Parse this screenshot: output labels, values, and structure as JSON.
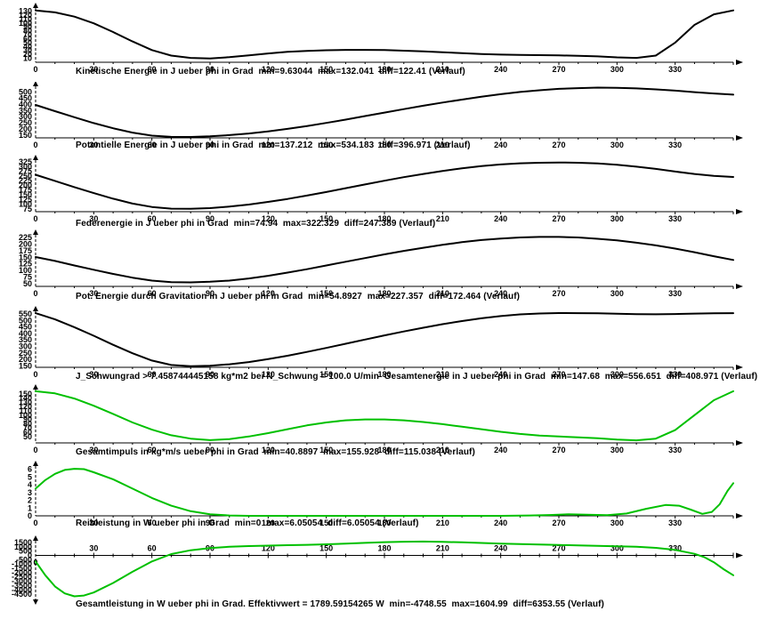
{
  "app": {
    "background": "#ffffff",
    "axis_color": "#000000",
    "text_color": "#000000",
    "curve_black": "#000000",
    "curve_green": "#00c000"
  },
  "chart_data": [
    {
      "type": "line",
      "name": "kinetische-energie",
      "title": "Kinetische Energie in J ueber phi in Grad  min=9.63044  max=132.041  diff=122.41 (Verlauf)",
      "xlabel": "phi in Grad",
      "ylabel": "Kinetische Energie in J",
      "min": 9.63044,
      "max": 132.041,
      "diff": 122.41,
      "color": "#000000",
      "xlim": [
        0,
        360
      ],
      "xticks": [
        0,
        30,
        60,
        90,
        120,
        150,
        180,
        210,
        240,
        270,
        300,
        330
      ],
      "xtick_minor_step": 10,
      "ylim": [
        0,
        138
      ],
      "yticks": [
        130,
        120,
        110,
        100,
        90,
        80,
        70,
        60,
        50,
        40,
        30,
        20,
        10
      ],
      "x": [
        0,
        10,
        20,
        30,
        40,
        50,
        60,
        70,
        80,
        90,
        100,
        110,
        120,
        130,
        140,
        150,
        160,
        170,
        180,
        190,
        200,
        210,
        220,
        230,
        240,
        250,
        260,
        270,
        280,
        290,
        300,
        310,
        320,
        330,
        340,
        350,
        360
      ],
      "y": [
        132,
        127,
        116,
        99,
        77,
        53,
        31,
        17,
        11,
        9.7,
        13,
        17.5,
        22.5,
        26.5,
        29,
        30.5,
        31.5,
        31.5,
        31,
        29.5,
        27.5,
        25.5,
        23,
        21,
        19.5,
        18.5,
        18,
        17.5,
        16.5,
        15,
        12.5,
        11,
        17,
        50,
        95,
        122,
        132
      ]
    },
    {
      "type": "line",
      "name": "potentielle-energie",
      "title": "Potentielle Energie in J ueber phi in Grad  min=137.212  max=534.183  diff=396.971 (Verlauf)",
      "xlabel": "phi in Grad",
      "ylabel": "Potentielle Energie in J",
      "min": 137.212,
      "max": 534.183,
      "diff": 396.971,
      "color": "#000000",
      "xlim": [
        0,
        360
      ],
      "xticks": [
        0,
        30,
        60,
        90,
        120,
        150,
        180,
        210,
        240,
        270,
        300,
        330
      ],
      "xtick_minor_step": 10,
      "ylim": [
        130,
        545
      ],
      "yticks": [
        500,
        450,
        400,
        350,
        300,
        250,
        200,
        150
      ],
      "x": [
        0,
        10,
        20,
        30,
        40,
        50,
        60,
        70,
        80,
        90,
        100,
        110,
        120,
        130,
        140,
        150,
        160,
        170,
        180,
        190,
        200,
        210,
        220,
        230,
        240,
        250,
        260,
        270,
        280,
        290,
        300,
        310,
        320,
        330,
        340,
        350,
        360
      ],
      "y": [
        395,
        345,
        296,
        249,
        207,
        172,
        148,
        138,
        137.5,
        142,
        152,
        165,
        182,
        202,
        225,
        250,
        277,
        305,
        333,
        361,
        388,
        414,
        438,
        461,
        481,
        499,
        513,
        524,
        530,
        534,
        533,
        528,
        520,
        510,
        498,
        487,
        478
      ]
    },
    {
      "type": "line",
      "name": "federenergie",
      "title": "Federenergie in J ueber phi in Grad  min=74.94  max=322.329  diff=247.389 (Verlauf)",
      "xlabel": "phi in Grad",
      "ylabel": "Federenergie in J",
      "min": 74.94,
      "max": 322.329,
      "diff": 247.389,
      "color": "#000000",
      "xlim": [
        0,
        360
      ],
      "xticks": [
        0,
        30,
        60,
        90,
        120,
        150,
        180,
        210,
        240,
        270,
        300,
        330
      ],
      "xtick_minor_step": 10,
      "ylim": [
        60,
        335
      ],
      "yticks": [
        325,
        300,
        275,
        250,
        225,
        200,
        175,
        150,
        125,
        100,
        75
      ],
      "x": [
        0,
        10,
        20,
        30,
        40,
        50,
        60,
        70,
        80,
        90,
        100,
        110,
        120,
        130,
        140,
        150,
        160,
        170,
        180,
        190,
        200,
        210,
        220,
        230,
        240,
        250,
        260,
        270,
        280,
        290,
        300,
        310,
        320,
        330,
        340,
        350,
        360
      ],
      "y": [
        257,
        224,
        191,
        159,
        129,
        103,
        85,
        76,
        75,
        79,
        87,
        98,
        112,
        128,
        146,
        165,
        185,
        205,
        225,
        244,
        261,
        277,
        291,
        303,
        312,
        318,
        321,
        322,
        321,
        317,
        310,
        300,
        288,
        274,
        261,
        251,
        245
      ]
    },
    {
      "type": "line",
      "name": "pot-energie-gravitation",
      "title": "Pot. Energie durch Gravitation in J ueber phi in Grad  min=54.8927  max=227.357  diff=172.464 (Verlauf)",
      "xlabel": "phi in Grad",
      "ylabel": "Pot. Energie durch Gravitation in J",
      "min": 54.8927,
      "max": 227.357,
      "diff": 172.464,
      "color": "#000000",
      "xlim": [
        0,
        360
      ],
      "xticks": [
        0,
        30,
        60,
        90,
        120,
        150,
        180,
        210,
        240,
        270,
        300,
        330
      ],
      "xtick_minor_step": 10,
      "ylim": [
        40,
        235
      ],
      "yticks": [
        225,
        200,
        175,
        150,
        125,
        100,
        75,
        50
      ],
      "x": [
        0,
        10,
        20,
        30,
        40,
        50,
        60,
        70,
        80,
        90,
        100,
        110,
        120,
        130,
        140,
        150,
        160,
        170,
        180,
        190,
        200,
        210,
        220,
        230,
        240,
        250,
        260,
        270,
        280,
        290,
        300,
        310,
        320,
        330,
        340,
        350,
        360
      ],
      "y": [
        151,
        136,
        119,
        103,
        87,
        73,
        62,
        56,
        55,
        57.5,
        62,
        70,
        80,
        92,
        105,
        119,
        133,
        147,
        161,
        174,
        186,
        197,
        207,
        215,
        221,
        225,
        227,
        227,
        225,
        220,
        214,
        205,
        195,
        183,
        169,
        154,
        140
      ]
    },
    {
      "type": "line",
      "name": "gesamtenergie",
      "title": "J_Schwungrad > 7.458744445158 kg*m2 bei N_Schwung = 100.0 U/min  Gesamtenergie in J ueber phi in Grad  min=147.68  max=556.651  diff=408.971 (Verlauf)",
      "xlabel": "phi in Grad",
      "ylabel": "Gesamtenergie in J",
      "min": 147.68,
      "max": 556.651,
      "diff": 408.971,
      "j_schwungrad": 7.458744445158,
      "j_schwungrad_unit": "kg*m2",
      "n_schwung": 100.0,
      "n_schwung_unit": "U/min",
      "color": "#000000",
      "xlim": [
        0,
        360
      ],
      "xticks": [
        0,
        30,
        60,
        90,
        120,
        150,
        180,
        210,
        240,
        270,
        300,
        330
      ],
      "xtick_minor_step": 10,
      "ylim": [
        140,
        570
      ],
      "yticks": [
        550,
        500,
        450,
        400,
        350,
        300,
        250,
        200,
        150
      ],
      "x": [
        0,
        10,
        20,
        30,
        40,
        50,
        60,
        70,
        80,
        90,
        100,
        110,
        120,
        130,
        140,
        150,
        160,
        170,
        180,
        190,
        200,
        210,
        220,
        230,
        240,
        250,
        260,
        270,
        280,
        290,
        300,
        310,
        320,
        330,
        340,
        350,
        360
      ],
      "y": [
        556,
        508,
        448,
        382,
        313,
        248,
        192,
        158,
        148,
        152,
        163,
        180,
        203,
        229,
        258,
        289,
        321,
        353,
        385,
        415,
        444,
        471,
        495,
        516,
        533,
        546,
        553,
        556.5,
        556,
        554,
        551,
        548,
        547,
        549,
        552,
        555,
        556
      ]
    },
    {
      "type": "line",
      "name": "gesamtimpuls",
      "title": "Gesamtimpuls in kg*m/s ueber phi in Grad  min=40.8897  max=155.928  diff=115.038 (Verlauf)",
      "xlabel": "phi in Grad",
      "ylabel": "Gesamtimpuls in kg*m/s",
      "min": 40.8897,
      "max": 155.928,
      "diff": 115.038,
      "color": "#00c000",
      "xlim": [
        0,
        360
      ],
      "xticks": [
        0,
        30,
        60,
        90,
        120,
        150,
        180,
        210,
        240,
        270,
        300,
        330
      ],
      "xtick_minor_step": 10,
      "ylim": [
        35,
        160
      ],
      "yticks": [
        150,
        140,
        130,
        120,
        110,
        100,
        90,
        80,
        70,
        60,
        50
      ],
      "x": [
        0,
        10,
        20,
        30,
        40,
        50,
        60,
        70,
        80,
        90,
        100,
        110,
        120,
        130,
        140,
        150,
        160,
        170,
        180,
        190,
        200,
        210,
        220,
        230,
        240,
        250,
        260,
        270,
        280,
        290,
        300,
        310,
        320,
        330,
        340,
        350,
        360
      ],
      "y": [
        156,
        151,
        139,
        122,
        103,
        83,
        66,
        53,
        45,
        41.5,
        44,
        50,
        58,
        67,
        76,
        83,
        88,
        90,
        90,
        88,
        84,
        79,
        73,
        67,
        61,
        56,
        52,
        50,
        48,
        46,
        43,
        41,
        45,
        65,
        100,
        135,
        156
      ]
    },
    {
      "type": "line",
      "name": "reibleistung",
      "title": "Reibleistung in W ueber phi in Grad  min=0  max=6.05054  diff=6.05054 (Verlauf)",
      "xlabel": "phi in Grad",
      "ylabel": "Reibleistung in W",
      "min": 0,
      "max": 6.05054,
      "diff": 6.05054,
      "color": "#00c000",
      "xlim": [
        0,
        360
      ],
      "xticks": [
        0,
        30,
        60,
        90,
        120,
        150,
        180,
        210,
        240,
        270,
        300,
        330
      ],
      "xtick_minor_step": 10,
      "ylim": [
        0,
        6.4
      ],
      "yticks": [
        6,
        5,
        4,
        3,
        2,
        1,
        0
      ],
      "x": [
        0,
        5,
        10,
        15,
        20,
        25,
        30,
        40,
        50,
        60,
        70,
        80,
        90,
        100,
        110,
        120,
        140,
        160,
        180,
        200,
        220,
        240,
        255,
        265,
        275,
        285,
        295,
        305,
        315,
        325,
        332,
        338,
        344,
        349,
        353,
        357,
        360
      ],
      "y": [
        3.5,
        4.6,
        5.4,
        5.9,
        6.05,
        6.0,
        5.6,
        4.7,
        3.5,
        2.3,
        1.3,
        0.6,
        0.2,
        0.05,
        0,
        0,
        0,
        0,
        0,
        0,
        0,
        0,
        0.05,
        0.1,
        0.2,
        0.15,
        0.08,
        0.3,
        0.9,
        1.4,
        1.3,
        0.8,
        0.25,
        0.5,
        1.5,
        3.2,
        4.2
      ]
    },
    {
      "type": "line",
      "name": "gesamtleistung",
      "title": "Gesamtleistung in W ueber phi in Grad. Effektivwert = 1789.59154265 W  min=-4748.55  max=1604.99  diff=6353.55 (Verlauf)",
      "xlabel": "phi in Grad",
      "ylabel": "Gesamtleistung in W",
      "effektivwert": 1789.59154265,
      "effektivwert_unit": "W",
      "min": -4748.55,
      "max": 1604.99,
      "diff": 6353.55,
      "color": "#00c000",
      "xlim": [
        0,
        360
      ],
      "xticks": [
        0,
        30,
        60,
        90,
        120,
        150,
        180,
        210,
        240,
        270,
        300,
        330
      ],
      "xtick_minor_step": 10,
      "ylim": [
        -4900,
        1700
      ],
      "yticks": [
        1500,
        1000,
        500,
        0,
        -500,
        -1000,
        -1500,
        -2000,
        -2500,
        -3000,
        -3500,
        -4000,
        -4500
      ],
      "x": [
        0,
        5,
        10,
        15,
        20,
        25,
        30,
        40,
        50,
        60,
        70,
        80,
        90,
        100,
        110,
        120,
        130,
        140,
        150,
        160,
        170,
        180,
        190,
        200,
        210,
        220,
        230,
        240,
        250,
        260,
        270,
        280,
        290,
        300,
        310,
        320,
        330,
        340,
        345,
        350,
        355,
        360
      ],
      "y": [
        -700,
        -2300,
        -3600,
        -4400,
        -4748,
        -4650,
        -4300,
        -3200,
        -1900,
        -700,
        150,
        600,
        850,
        1000,
        1080,
        1130,
        1180,
        1230,
        1290,
        1360,
        1450,
        1530,
        1590,
        1605,
        1570,
        1510,
        1440,
        1370,
        1310,
        1260,
        1210,
        1160,
        1110,
        1060,
        1000,
        880,
        640,
        180,
        -200,
        -800,
        -1600,
        -2300
      ]
    }
  ]
}
